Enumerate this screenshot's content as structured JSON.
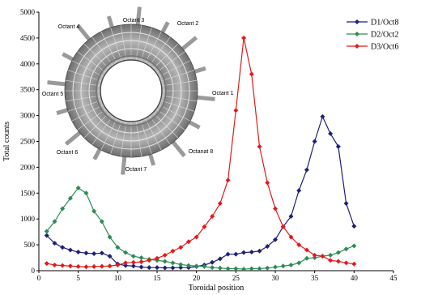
{
  "chart_data": {
    "type": "line",
    "xlabel": "Toroidal position",
    "ylabel": "Total counts",
    "xlim": [
      0,
      45
    ],
    "ylim": [
      0,
      5000
    ],
    "x_ticks": [
      0,
      5,
      10,
      15,
      20,
      25,
      30,
      35,
      40,
      45
    ],
    "y_ticks": [
      0,
      500,
      1000,
      1500,
      2000,
      2500,
      3000,
      3500,
      4000,
      4500,
      5000
    ],
    "grid": false,
    "legend_position": "top-right",
    "series": [
      {
        "name": "D1/Oct8",
        "color": "#1f1f7a",
        "marker": "diamond",
        "x": [
          1,
          2,
          3,
          4,
          5,
          6,
          7,
          8,
          9,
          10,
          11,
          12,
          13,
          14,
          15,
          16,
          17,
          18,
          19,
          20,
          21,
          22,
          23,
          24,
          25,
          26,
          27,
          28,
          29,
          30,
          31,
          32,
          33,
          34,
          35,
          36,
          37,
          38,
          39,
          40
        ],
        "y": [
          680,
          530,
          450,
          400,
          360,
          340,
          330,
          340,
          280,
          130,
          100,
          90,
          70,
          60,
          60,
          55,
          55,
          60,
          60,
          80,
          110,
          160,
          230,
          320,
          320,
          350,
          360,
          380,
          470,
          600,
          850,
          1050,
          1550,
          1950,
          2500,
          2980,
          2650,
          2400,
          1300,
          860
        ]
      },
      {
        "name": "D2/Oct2",
        "color": "#2e8b57",
        "marker": "diamond",
        "x": [
          1,
          2,
          3,
          4,
          5,
          6,
          7,
          8,
          9,
          10,
          11,
          12,
          13,
          14,
          15,
          16,
          17,
          18,
          19,
          20,
          21,
          22,
          23,
          24,
          25,
          26,
          27,
          28,
          29,
          30,
          31,
          32,
          33,
          34,
          35,
          36,
          37,
          38,
          39,
          40
        ],
        "y": [
          760,
          950,
          1200,
          1400,
          1600,
          1500,
          1150,
          950,
          650,
          450,
          350,
          280,
          250,
          220,
          200,
          180,
          150,
          120,
          100,
          90,
          80,
          60,
          50,
          40,
          40,
          30,
          40,
          40,
          50,
          70,
          90,
          110,
          150,
          240,
          250,
          280,
          300,
          350,
          420,
          480
        ]
      },
      {
        "name": "D3/Oct6",
        "color": "#e01b1b",
        "marker": "diamond",
        "x": [
          1,
          2,
          3,
          4,
          5,
          6,
          7,
          8,
          9,
          10,
          11,
          12,
          13,
          14,
          15,
          16,
          17,
          18,
          19,
          20,
          21,
          22,
          23,
          24,
          25,
          26,
          27,
          28,
          29,
          30,
          31,
          32,
          33,
          34,
          35,
          36,
          37,
          38,
          39,
          40
        ],
        "y": [
          140,
          110,
          100,
          90,
          80,
          75,
          80,
          85,
          90,
          110,
          150,
          160,
          170,
          200,
          240,
          300,
          380,
          450,
          560,
          650,
          850,
          1050,
          1300,
          1750,
          3100,
          4500,
          3800,
          2400,
          1700,
          1200,
          850,
          650,
          500,
          400,
          300,
          280,
          200,
          180,
          150,
          130
        ]
      }
    ]
  },
  "inset": {
    "octant_labels": [
      "Octant 1",
      "Octant 2",
      "Octant 3",
      "Octant 4",
      "Octant 5",
      "Octant 6",
      "Octant 7",
      "Octanat 8"
    ]
  }
}
